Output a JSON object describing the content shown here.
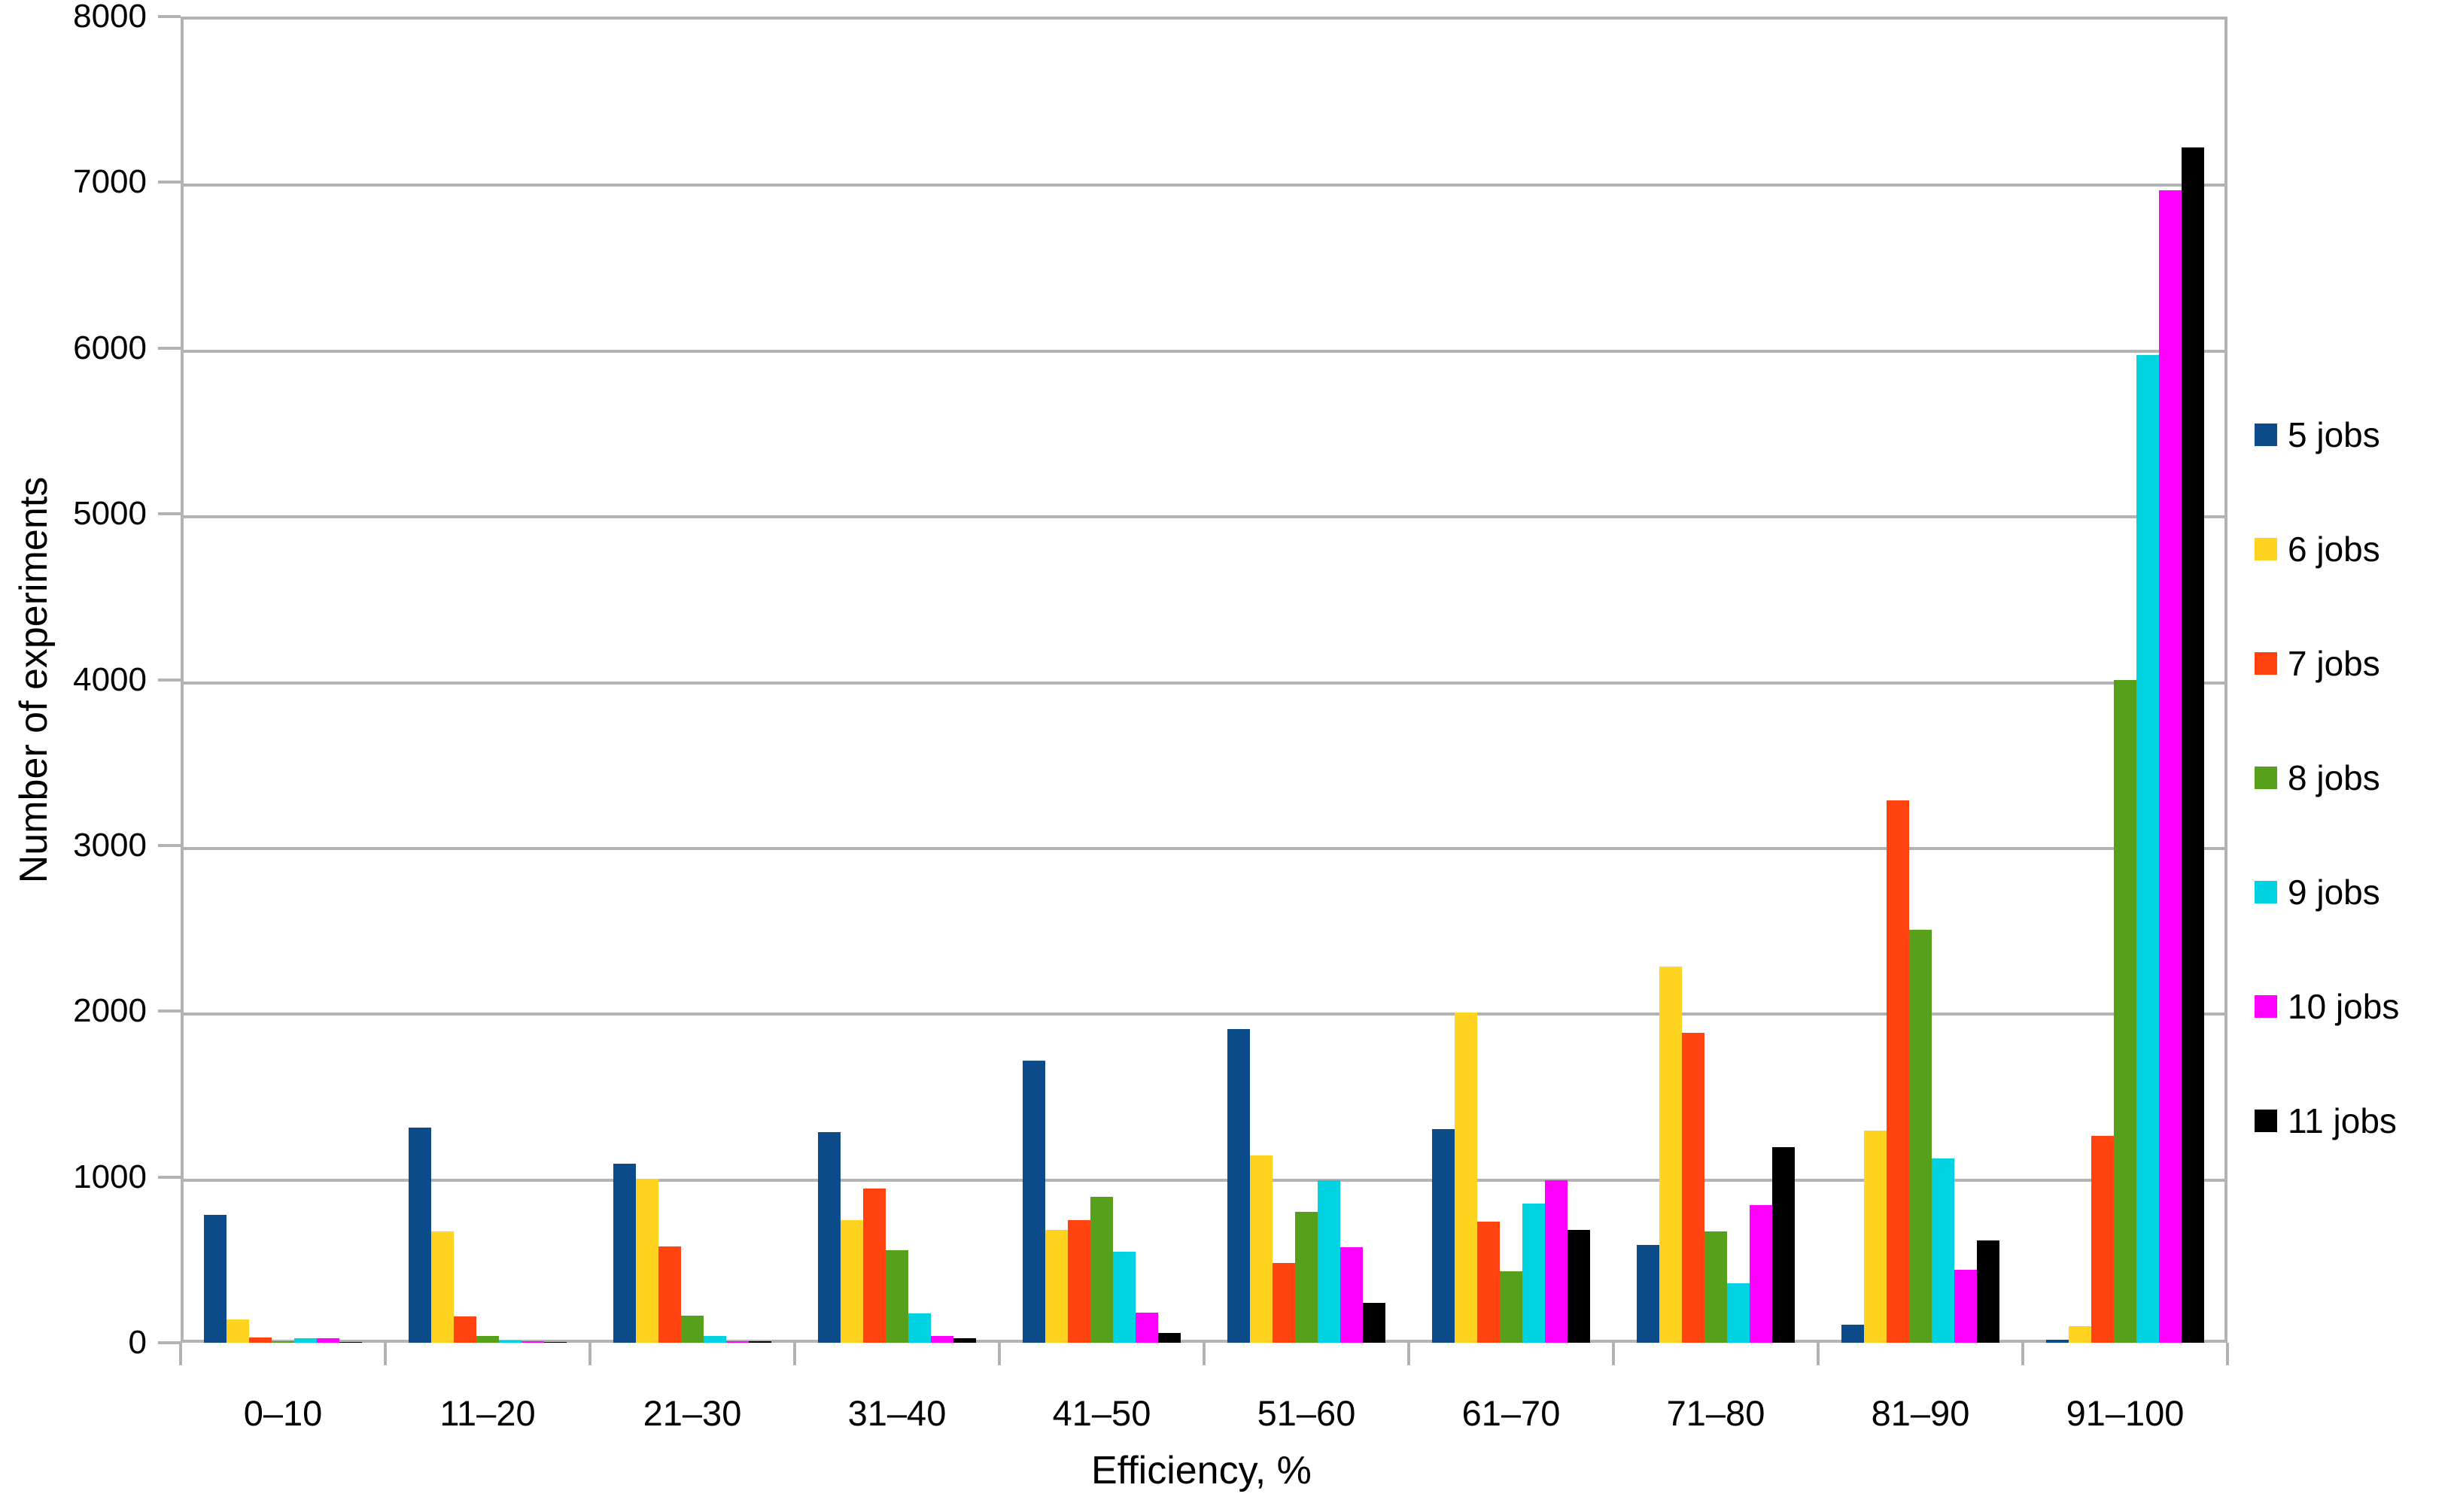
{
  "chart_data": {
    "type": "bar",
    "title": "",
    "xlabel": "Efficiency, %",
    "ylabel": "Number of experiments",
    "categories": [
      "0–10",
      "11–20",
      "21–30",
      "31–40",
      "41–50",
      "51–60",
      "61–70",
      "71–80",
      "81–90",
      "91–100"
    ],
    "series": [
      {
        "name": "5 jobs",
        "color": "#0d4c8b",
        "values": [
          770,
          1300,
          1080,
          1270,
          1700,
          1890,
          1290,
          590,
          110,
          20
        ]
      },
      {
        "name": "6 jobs",
        "color": "#ffd320",
        "values": [
          140,
          670,
          990,
          740,
          680,
          1130,
          1990,
          2270,
          1280,
          100
        ]
      },
      {
        "name": "7 jobs",
        "color": "#ff420e",
        "values": [
          30,
          160,
          580,
          930,
          740,
          480,
          730,
          1870,
          3270,
          1250
        ]
      },
      {
        "name": "8 jobs",
        "color": "#57a01c",
        "values": [
          10,
          40,
          165,
          560,
          880,
          790,
          430,
          670,
          2490,
          4000
        ]
      },
      {
        "name": "9 jobs",
        "color": "#00d2e2",
        "values": [
          25,
          15,
          40,
          175,
          550,
          980,
          840,
          360,
          1110,
          5960
        ]
      },
      {
        "name": "10 jobs",
        "color": "#ff00ff",
        "values": [
          25,
          10,
          10,
          40,
          180,
          575,
          980,
          830,
          440,
          6950
        ]
      },
      {
        "name": "11 jobs",
        "color": "#000000",
        "values": [
          5,
          5,
          10,
          25,
          60,
          240,
          680,
          1180,
          615,
          7210
        ]
      }
    ],
    "ylim": [
      0,
      8000
    ],
    "ytick_step": 1000,
    "grid": true,
    "legend_position": "right",
    "axis_color": "#b3b3b3",
    "text_color": "#000000"
  }
}
